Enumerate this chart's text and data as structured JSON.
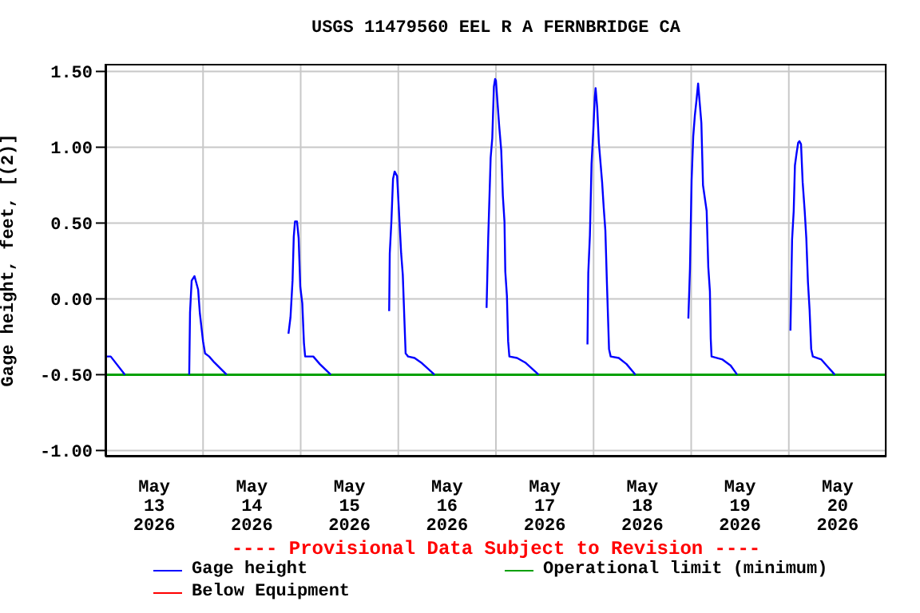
{
  "chart_data": {
    "type": "line",
    "title": "USGS 11479560 EEL R A FERNBRIDGE CA",
    "ylabel": "Gage height, feet, [(2)]",
    "annotations": [
      "---- Provisional Data Subject to Revision ----"
    ],
    "x": [
      "2026-05-13T00:00",
      "2026-05-13T01:18",
      "2026-05-13T04:48",
      "2026-05-13T12:00",
      "2026-05-13T20:36",
      "2026-05-13T20:48",
      "2026-05-13T21:12",
      "2026-05-13T21:54",
      "2026-05-13T22:48",
      "2026-05-13T23:12",
      "2026-05-14T00:00",
      "2026-05-14T00:30",
      "2026-05-14T01:30",
      "2026-05-14T02:48",
      "2026-05-14T05:48",
      "2026-05-14T12:00",
      "2026-05-14T21:00",
      "2026-05-14T21:30",
      "2026-05-14T22:00",
      "2026-05-14T22:18",
      "2026-05-14T22:36",
      "2026-05-14T23:06",
      "2026-05-14T23:30",
      "2026-05-14T23:54",
      "2026-05-15T00:24",
      "2026-05-15T00:48",
      "2026-05-15T01:06",
      "2026-05-15T03:06",
      "2026-05-15T04:42",
      "2026-05-15T07:24",
      "2026-05-15T12:00",
      "2026-05-15T21:45",
      "2026-05-15T21:54",
      "2026-05-15T22:18",
      "2026-05-15T22:42",
      "2026-05-15T23:06",
      "2026-05-15T23:42",
      "2026-05-16T00:06",
      "2026-05-16T00:42",
      "2026-05-16T01:06",
      "2026-05-16T01:30",
      "2026-05-16T01:48",
      "2026-05-16T02:24",
      "2026-05-16T04:00",
      "2026-05-16T05:36",
      "2026-05-16T08:54",
      "2026-05-16T12:00",
      "2026-05-16T21:42",
      "2026-05-16T22:06",
      "2026-05-16T22:42",
      "2026-05-16T23:06",
      "2026-05-16T23:30",
      "2026-05-16T23:48",
      "2026-05-17T00:00",
      "2026-05-17T00:48",
      "2026-05-17T01:18",
      "2026-05-17T01:42",
      "2026-05-17T02:06",
      "2026-05-17T02:18",
      "2026-05-17T02:42",
      "2026-05-17T03:00",
      "2026-05-17T03:18",
      "2026-05-17T05:12",
      "2026-05-17T07:12",
      "2026-05-17T10:30",
      "2026-05-17T14:00",
      "2026-05-17T22:30",
      "2026-05-17T22:42",
      "2026-05-17T23:06",
      "2026-05-17T23:30",
      "2026-05-17T23:54",
      "2026-05-18T00:18",
      "2026-05-18T00:30",
      "2026-05-18T00:54",
      "2026-05-18T01:18",
      "2026-05-18T02:06",
      "2026-05-18T02:30",
      "2026-05-18T02:54",
      "2026-05-18T03:18",
      "2026-05-18T03:48",
      "2026-05-18T04:12",
      "2026-05-18T06:12",
      "2026-05-18T08:06",
      "2026-05-18T10:18",
      "2026-05-18T14:00",
      "2026-05-18T23:18",
      "2026-05-18T23:42",
      "2026-05-19T00:06",
      "2026-05-19T00:30",
      "2026-05-19T00:54",
      "2026-05-19T01:18",
      "2026-05-19T01:42",
      "2026-05-19T02:06",
      "2026-05-19T02:30",
      "2026-05-19T02:54",
      "2026-05-19T03:48",
      "2026-05-19T04:12",
      "2026-05-19T04:36",
      "2026-05-19T04:48",
      "2026-05-19T05:00",
      "2026-05-19T07:42",
      "2026-05-19T09:42",
      "2026-05-19T11:18",
      "2026-05-19T16:00",
      "2026-05-20T00:24",
      "2026-05-20T00:48",
      "2026-05-20T01:12",
      "2026-05-20T01:30",
      "2026-05-20T01:54",
      "2026-05-20T02:18",
      "2026-05-20T02:36",
      "2026-05-20T03:00",
      "2026-05-20T03:24",
      "2026-05-20T03:54",
      "2026-05-20T04:18",
      "2026-05-20T04:42",
      "2026-05-20T05:06",
      "2026-05-20T05:30",
      "2026-05-20T05:54",
      "2026-05-20T08:00",
      "2026-05-20T09:18",
      "2026-05-20T11:18"
    ],
    "series": [
      {
        "name": "Gage height",
        "color": "#0000ff",
        "values": [
          -0.38,
          -0.38,
          -0.5,
          null,
          -0.5,
          -0.09,
          0.12,
          0.15,
          0.06,
          -0.09,
          -0.28,
          -0.36,
          -0.38,
          -0.42,
          -0.5,
          null,
          -0.23,
          -0.12,
          0.12,
          0.41,
          0.51,
          0.51,
          0.4,
          0.08,
          -0.03,
          -0.29,
          -0.38,
          -0.38,
          -0.43,
          -0.5,
          null,
          -0.08,
          0.3,
          0.51,
          0.79,
          0.84,
          0.81,
          0.61,
          0.3,
          0.16,
          -0.14,
          -0.36,
          -0.38,
          -0.39,
          -0.42,
          -0.5,
          null,
          -0.06,
          0.4,
          0.93,
          1.06,
          1.4,
          1.45,
          1.44,
          1.14,
          0.98,
          0.68,
          0.51,
          0.18,
          0.02,
          -0.28,
          -0.38,
          -0.39,
          -0.42,
          -0.5,
          null,
          -0.3,
          0.17,
          0.42,
          0.89,
          1.09,
          1.33,
          1.39,
          1.26,
          1.03,
          0.77,
          0.6,
          0.45,
          0.09,
          -0.33,
          -0.38,
          -0.39,
          -0.43,
          -0.5,
          null,
          -0.13,
          0.2,
          0.78,
          1.07,
          1.21,
          1.31,
          1.42,
          1.29,
          1.16,
          0.75,
          0.58,
          0.21,
          0.05,
          -0.26,
          -0.38,
          -0.4,
          -0.44,
          -0.5,
          null,
          -0.21,
          0.39,
          0.58,
          0.88,
          0.96,
          1.03,
          1.04,
          1.02,
          0.77,
          0.58,
          0.4,
          0.11,
          -0.07,
          -0.33,
          -0.38,
          -0.4,
          -0.44,
          -0.5
        ]
      },
      {
        "name": "Below Equipment",
        "color": "#ff0000",
        "values": [
          null,
          null,
          null,
          null,
          null,
          null,
          null,
          null,
          null,
          null,
          null,
          null,
          null,
          null,
          null,
          null,
          null,
          null,
          null,
          null,
          null,
          null,
          null,
          null,
          null,
          null,
          null,
          null,
          null,
          null,
          null,
          null,
          null,
          null,
          null,
          null,
          null,
          null,
          null,
          null,
          null,
          null,
          null,
          null,
          null,
          null,
          null,
          null,
          null,
          null,
          null,
          null,
          null,
          null,
          null,
          null,
          null,
          null,
          null,
          null,
          null,
          null,
          null,
          null,
          null,
          null,
          null,
          null,
          null,
          null,
          null,
          null,
          null,
          null,
          null,
          null,
          null,
          null,
          null,
          null,
          null,
          null,
          null,
          null,
          null,
          null,
          null,
          null,
          null,
          null,
          null,
          null,
          null,
          null,
          null,
          null,
          null,
          null,
          null,
          null,
          null,
          null,
          null,
          null,
          null,
          null,
          null,
          null,
          null,
          null,
          null,
          null,
          null,
          null,
          null,
          null,
          null,
          null,
          null,
          null,
          null,
          null
        ]
      }
    ],
    "ref_lines": [
      {
        "axis": "y",
        "value": -0.5,
        "label": "Operational limit (minimum)",
        "color": "#00a000"
      }
    ],
    "xlim": [
      "2026-05-13T00:00",
      "2026-05-21T00:00"
    ],
    "xticks": [
      {
        "value": "2026-05-13T00:00",
        "label": null
      },
      {
        "value": "2026-05-13T12:00",
        "label": "May\n13\n2026"
      },
      {
        "value": "2026-05-14T00:00",
        "label": null
      },
      {
        "value": "2026-05-14T12:00",
        "label": "May\n14\n2026"
      },
      {
        "value": "2026-05-15T00:00",
        "label": null
      },
      {
        "value": "2026-05-15T12:00",
        "label": "May\n15\n2026"
      },
      {
        "value": "2026-05-16T00:00",
        "label": null
      },
      {
        "value": "2026-05-16T12:00",
        "label": "May\n16\n2026"
      },
      {
        "value": "2026-05-17T00:00",
        "label": null
      },
      {
        "value": "2026-05-17T12:00",
        "label": "May\n17\n2026"
      },
      {
        "value": "2026-05-18T00:00",
        "label": null
      },
      {
        "value": "2026-05-18T12:00",
        "label": "May\n18\n2026"
      },
      {
        "value": "2026-05-19T00:00",
        "label": null
      },
      {
        "value": "2026-05-19T12:00",
        "label": "May\n19\n2026"
      },
      {
        "value": "2026-05-20T00:00",
        "label": null
      },
      {
        "value": "2026-05-20T12:00",
        "label": "May\n20\n2026"
      },
      {
        "value": "2026-05-21T00:00",
        "label": null
      }
    ],
    "ylim": [
      -1.04,
      1.55
    ],
    "yticks": [
      {
        "value": -1,
        "label": "-1.00"
      },
      {
        "value": -0.5,
        "label": "-0.50"
      },
      {
        "value": 0,
        "label": "0.00"
      },
      {
        "value": 0.5,
        "label": "0.50"
      },
      {
        "value": 1,
        "label": "1.00"
      },
      {
        "value": 1.5,
        "label": "1.50"
      }
    ],
    "grid": true,
    "legend": "bottom",
    "marker": "none",
    "line_style": "solid"
  }
}
